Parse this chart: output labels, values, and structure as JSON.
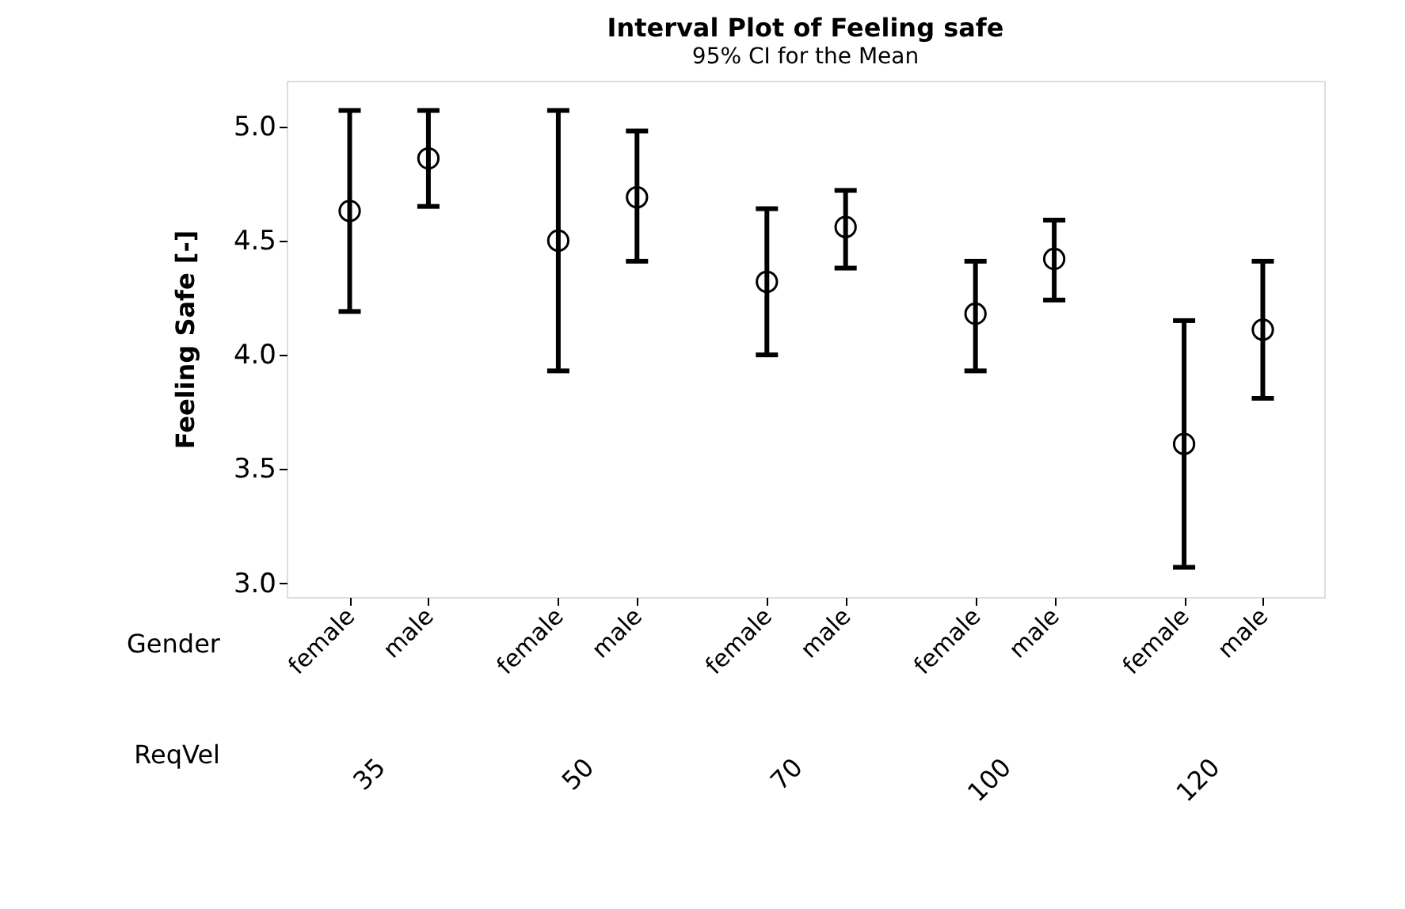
{
  "chart_data": {
    "type": "scatter",
    "title": "Interval Plot of Feeling safe",
    "subtitle": "95% CI for the Mean",
    "ylabel": "Feeling Safe [-]",
    "categories": [
      "female",
      "male",
      "female",
      "male",
      "female",
      "male",
      "female",
      "male",
      "female",
      "male"
    ],
    "values": [
      4.63,
      4.86,
      4.5,
      4.69,
      4.32,
      4.56,
      4.18,
      4.42,
      3.61,
      4.11
    ],
    "errors": [
      [
        4.19,
        5.07
      ],
      [
        4.65,
        5.07
      ],
      [
        3.93,
        5.07
      ],
      [
        4.41,
        4.98
      ],
      [
        4.0,
        4.64
      ],
      [
        4.38,
        4.72
      ],
      [
        3.93,
        4.41
      ],
      [
        4.24,
        4.59
      ],
      [
        3.07,
        4.15
      ],
      [
        3.81,
        4.41
      ]
    ],
    "color": "#000000",
    "marker": "circle",
    "ylim": [
      2.94,
      5.2
    ],
    "yticks": [
      {
        "value": 3,
        "label": "3.0"
      },
      3.5,
      {
        "value": 4,
        "label": "4.0"
      },
      4.5,
      {
        "value": 5,
        "label": "5.0"
      }
    ],
    "grid": false,
    "annotations": [
      "Gender",
      "ReqVel",
      "35",
      "50",
      "70",
      "100",
      "120"
    ]
  }
}
